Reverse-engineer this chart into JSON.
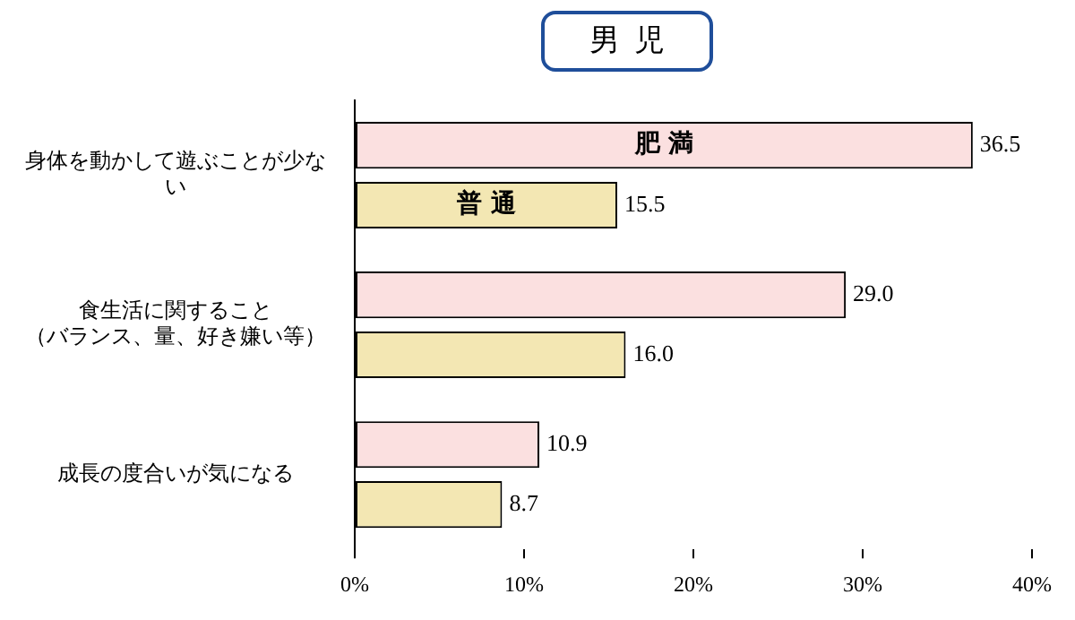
{
  "chart_data": {
    "type": "bar",
    "orientation": "horizontal",
    "title": "男児",
    "categories": [
      "身体を動かして遊ぶことが少ない",
      "食生活に関すること（バランス、量、好き嫌い等）",
      "成長の度合いが気になる"
    ],
    "series": [
      {
        "name": "肥満",
        "color": "#fbe0e0",
        "values": [
          36.5,
          29.0,
          10.9
        ],
        "value_labels": [
          "36.5",
          "29.0",
          "10.9"
        ]
      },
      {
        "name": "普通",
        "color": "#f3e7b3",
        "values": [
          15.5,
          16.0,
          8.7
        ],
        "value_labels": [
          "15.5",
          "16.0",
          "8.7"
        ]
      }
    ],
    "xlim": [
      0,
      40
    ],
    "xticks": [
      {
        "value": 0,
        "label": "0%"
      },
      {
        "value": 10,
        "label": "10%"
      },
      {
        "value": 20,
        "label": "20%"
      },
      {
        "value": 30,
        "label": "30%"
      },
      {
        "value": 40,
        "label": "40%"
      }
    ],
    "grid": false,
    "legend": false
  }
}
